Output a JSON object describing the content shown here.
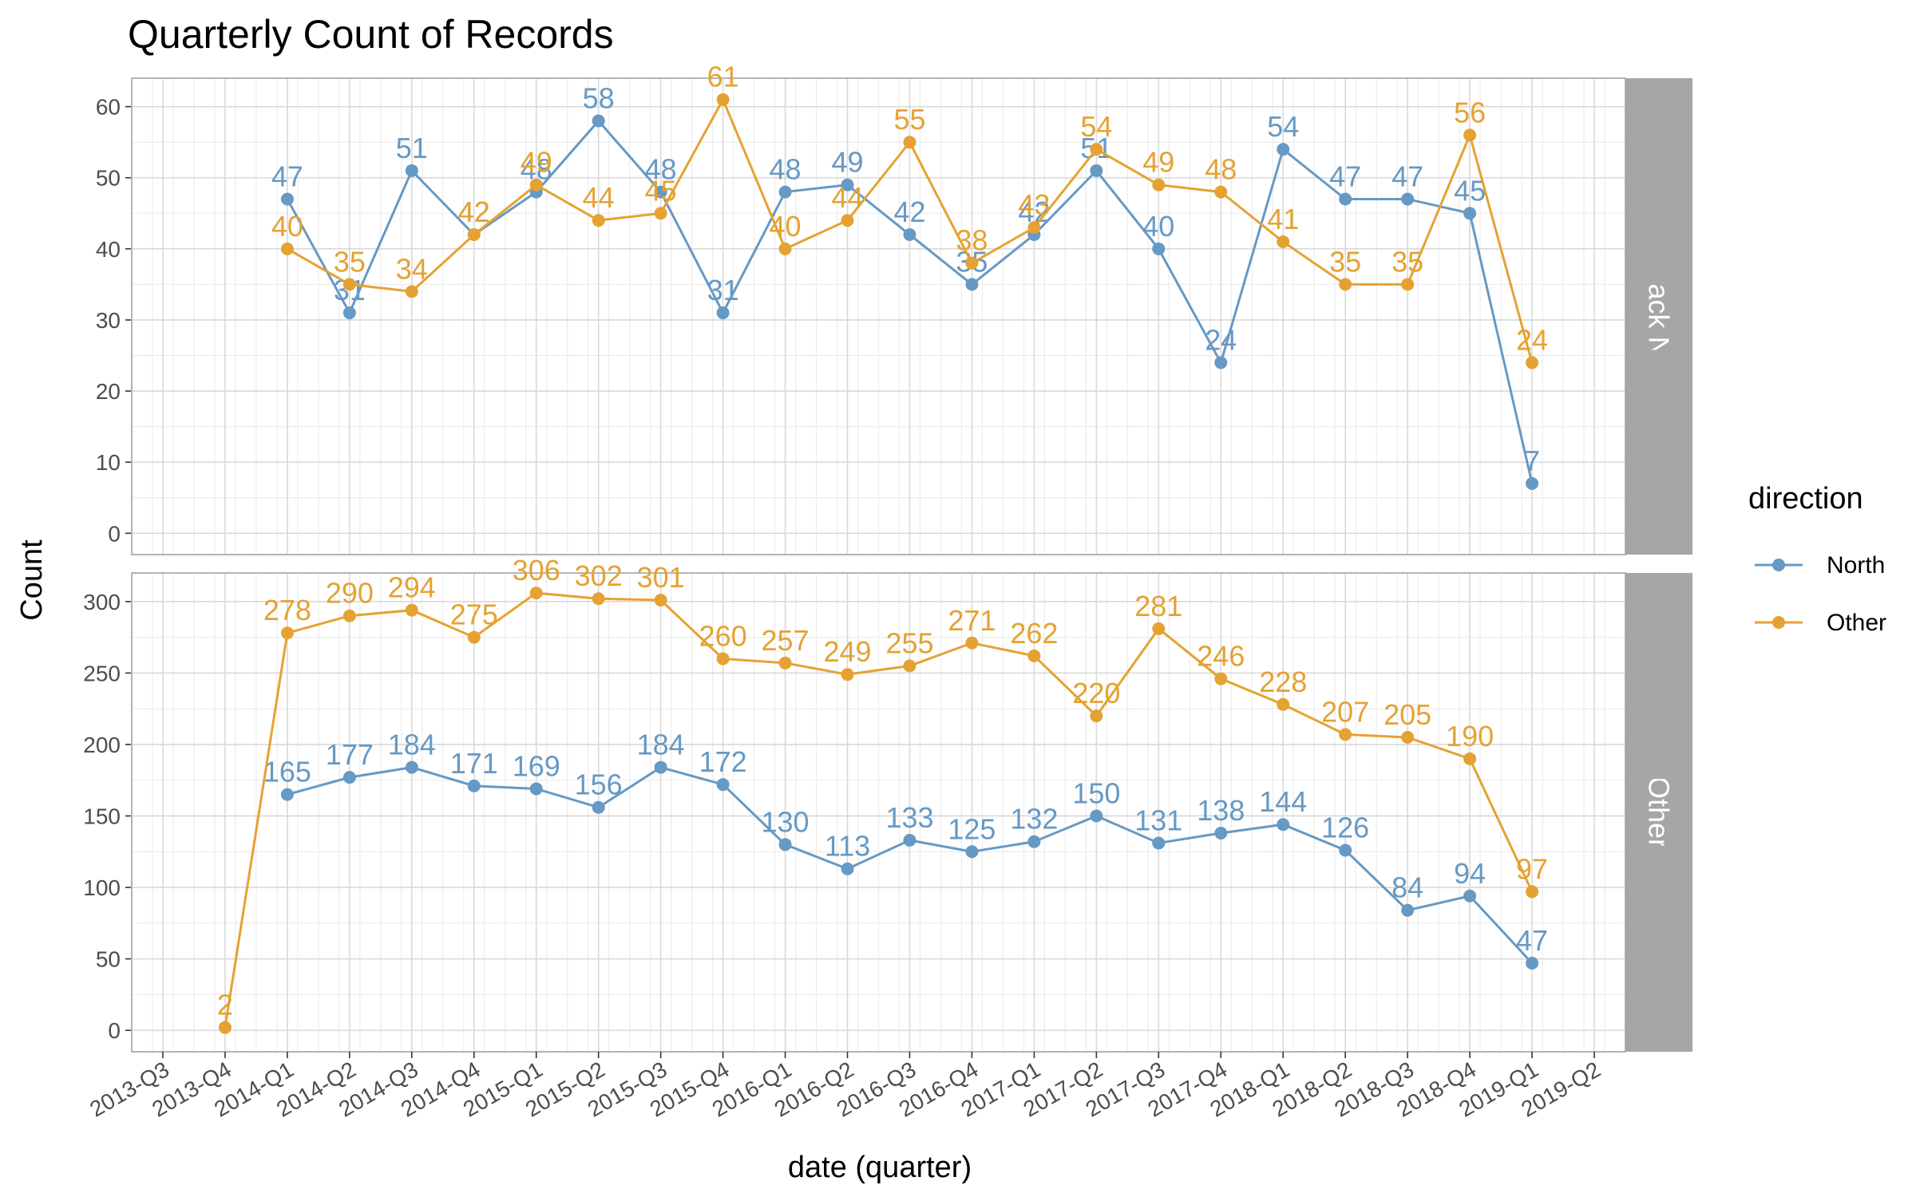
{
  "chart_data": {
    "type": "line",
    "title": "Quarterly Count of Records",
    "xlabel": "date (quarter)",
    "ylabel": "Count",
    "x_ticks": [
      "2013-Q3",
      "2013-Q4",
      "2014-Q1",
      "2014-Q2",
      "2014-Q3",
      "2014-Q4",
      "2015-Q1",
      "2015-Q2",
      "2015-Q3",
      "2015-Q4",
      "2016-Q1",
      "2016-Q2",
      "2016-Q3",
      "2016-Q4",
      "2017-Q1",
      "2017-Q2",
      "2017-Q3",
      "2017-Q4",
      "2018-Q1",
      "2018-Q2",
      "2018-Q3",
      "2018-Q4",
      "2019-Q1",
      "2019-Q2"
    ],
    "legend": {
      "title": "direction",
      "placement": "right",
      "entries": [
        {
          "name": "North",
          "color": "#6699c4"
        },
        {
          "name": "Other",
          "color": "#e5a232"
        }
      ]
    },
    "panels": [
      {
        "strip": "Broadway Cycle Track North Of E Union St",
        "ylim": [
          -3,
          64
        ],
        "y_ticks": [
          0,
          10,
          20,
          30,
          40,
          50,
          60
        ],
        "series": [
          {
            "name": "North",
            "x": [
              "2014-Q1",
              "2014-Q2",
              "2014-Q3",
              "2014-Q4",
              "2015-Q1",
              "2015-Q2",
              "2015-Q3",
              "2015-Q4",
              "2016-Q1",
              "2016-Q2",
              "2016-Q3",
              "2016-Q4",
              "2017-Q1",
              "2017-Q2",
              "2017-Q3",
              "2017-Q4",
              "2018-Q1",
              "2018-Q2",
              "2018-Q3",
              "2018-Q4",
              "2019-Q1"
            ],
            "values": [
              47,
              31,
              51,
              42,
              48,
              58,
              48,
              31,
              48,
              49,
              42,
              35,
              42,
              51,
              40,
              24,
              54,
              47,
              47,
              45,
              7
            ]
          },
          {
            "name": "Other",
            "x": [
              "2014-Q1",
              "2014-Q2",
              "2014-Q3",
              "2014-Q4",
              "2015-Q1",
              "2015-Q2",
              "2015-Q3",
              "2015-Q4",
              "2016-Q1",
              "2016-Q2",
              "2016-Q3",
              "2016-Q4",
              "2017-Q1",
              "2017-Q2",
              "2017-Q3",
              "2017-Q4",
              "2018-Q1",
              "2018-Q2",
              "2018-Q3",
              "2018-Q4",
              "2019-Q1"
            ],
            "values": [
              40,
              35,
              34,
              42,
              49,
              44,
              45,
              61,
              40,
              44,
              55,
              38,
              43,
              54,
              49,
              48,
              41,
              35,
              35,
              56,
              24
            ]
          }
        ]
      },
      {
        "strip": "Other",
        "ylim": [
          -15,
          320
        ],
        "y_ticks": [
          0,
          50,
          100,
          150,
          200,
          250,
          300
        ],
        "series": [
          {
            "name": "North",
            "x": [
              "2014-Q1",
              "2014-Q2",
              "2014-Q3",
              "2014-Q4",
              "2015-Q1",
              "2015-Q2",
              "2015-Q3",
              "2015-Q4",
              "2016-Q1",
              "2016-Q2",
              "2016-Q3",
              "2016-Q4",
              "2017-Q1",
              "2017-Q2",
              "2017-Q3",
              "2017-Q4",
              "2018-Q1",
              "2018-Q2",
              "2018-Q3",
              "2018-Q4",
              "2019-Q1"
            ],
            "values": [
              165,
              177,
              184,
              171,
              169,
              156,
              184,
              172,
              130,
              113,
              133,
              125,
              132,
              150,
              131,
              138,
              144,
              126,
              84,
              94,
              47
            ]
          },
          {
            "name": "Other",
            "x": [
              "2013-Q4",
              "2014-Q1",
              "2014-Q2",
              "2014-Q3",
              "2014-Q4",
              "2015-Q1",
              "2015-Q2",
              "2015-Q3",
              "2015-Q4",
              "2016-Q1",
              "2016-Q2",
              "2016-Q3",
              "2016-Q4",
              "2017-Q1",
              "2017-Q2",
              "2017-Q3",
              "2017-Q4",
              "2018-Q1",
              "2018-Q2",
              "2018-Q3",
              "2018-Q4",
              "2019-Q1"
            ],
            "values": [
              2,
              278,
              290,
              294,
              275,
              306,
              302,
              301,
              260,
              257,
              249,
              255,
              271,
              262,
              220,
              281,
              246,
              228,
              207,
              205,
              190,
              97
            ]
          }
        ]
      }
    ],
    "grid": true,
    "colors": {
      "panel_border": "#b3b3b3",
      "grid_major": "#d9d9d9",
      "grid_minor": "#ececec",
      "strip_fill": "#a6a6a6"
    }
  }
}
